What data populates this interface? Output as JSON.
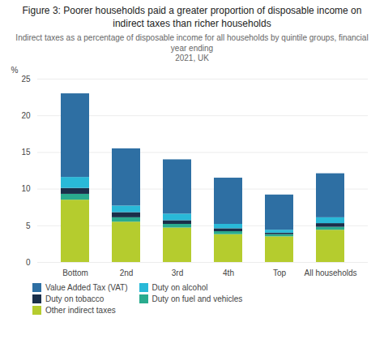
{
  "chart_data": {
    "type": "bar",
    "stacked": true,
    "title": "Figure 3: Poorer households paid a greater proportion of disposable income on indirect taxes than richer households",
    "subtitle": "Indirect taxes as a percentage of disposable income for all households by quintile groups, financial year ending\n2021, UK",
    "categories": [
      "Bottom",
      "2nd",
      "3rd",
      "4th",
      "Top",
      "All households"
    ],
    "series": [
      {
        "name": "Other indirect taxes",
        "color": "#b5cc2e",
        "values": [
          8.5,
          5.5,
          4.7,
          3.8,
          3.5,
          4.4
        ]
      },
      {
        "name": "Duty on fuel and vehicles",
        "color": "#2aab8e",
        "values": [
          0.8,
          0.6,
          0.5,
          0.4,
          0.3,
          0.4
        ]
      },
      {
        "name": "Duty on tobacco",
        "color": "#1a2f4a",
        "values": [
          0.8,
          0.7,
          0.5,
          0.4,
          0.2,
          0.5
        ]
      },
      {
        "name": "Duty on alcohol",
        "color": "#29b9d8",
        "values": [
          1.5,
          0.9,
          0.9,
          0.6,
          0.4,
          0.8
        ]
      },
      {
        "name": "Value Added Tax (VAT)",
        "color": "#2e6fa3",
        "values": [
          11.4,
          7.8,
          7.4,
          6.3,
          4.8,
          6.0
        ]
      }
    ],
    "ylabel": "%",
    "ylim": [
      0,
      25
    ],
    "yticks": [
      0,
      5,
      10,
      15,
      20,
      25
    ],
    "grid": true,
    "legend": "bottom"
  }
}
